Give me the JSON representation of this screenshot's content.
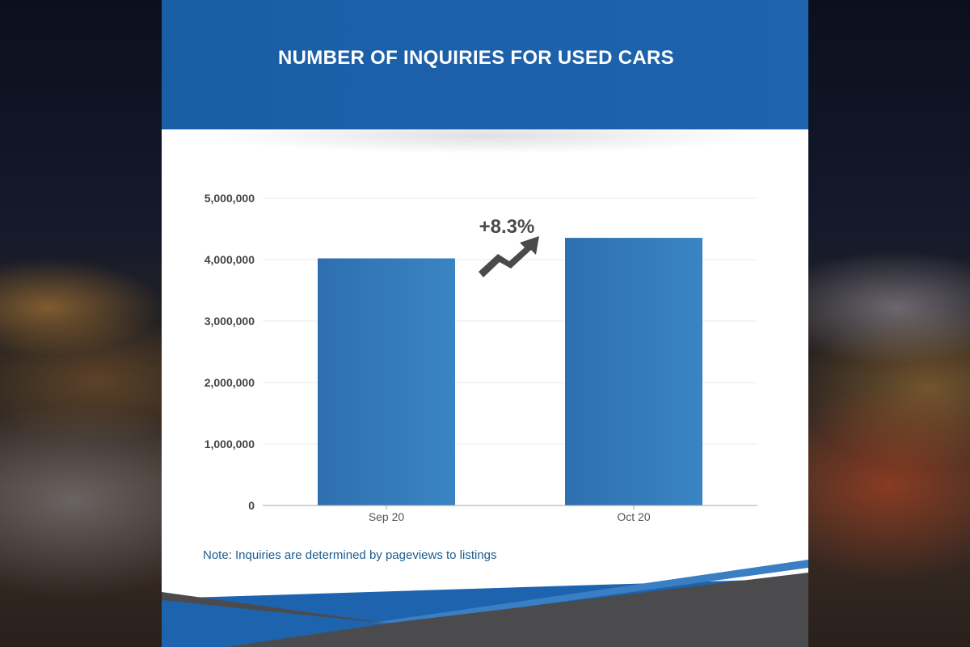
{
  "title": "NUMBER OF INQUIRIES FOR USED CARS",
  "note": "Note: Inquiries are determined by pageviews to listings",
  "annotation": {
    "text": "+8.3%",
    "icon": "trend-up-arrow-icon",
    "color": "#4a4a4a"
  },
  "colors": {
    "header": "#1a5ea5",
    "bar_start": "#2e6fb0",
    "bar_end": "#3a84c4",
    "note": "#1a5c8e",
    "footer_gray": "#4b4b4d",
    "footer_blue": "#3a7fc4"
  },
  "chart_data": {
    "type": "bar",
    "categories": [
      "Sep 20",
      "Oct 20"
    ],
    "values": [
      4020000,
      4354000
    ],
    "ylim": [
      0,
      5000000
    ],
    "yticks": [
      0,
      1000000,
      2000000,
      3000000,
      4000000,
      5000000
    ],
    "ytick_labels": [
      "0",
      "1,000,000",
      "2,000,000",
      "3,000,000",
      "4,000,000",
      "5,000,000"
    ],
    "grid": true,
    "legend": "none"
  }
}
